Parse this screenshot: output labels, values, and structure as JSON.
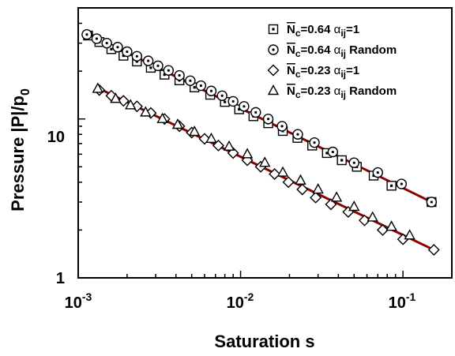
{
  "chart_data": {
    "type": "scatter",
    "xlabel": "Saturation s",
    "ylabel": "Pressure |P|/p",
    "ylabel_sub": "0",
    "xscale": "log",
    "yscale": "log",
    "xlim": [
      0.001,
      0.2
    ],
    "ylim": [
      1,
      50
    ],
    "x_major_ticks": [
      0.001,
      0.01,
      0.1
    ],
    "x_tick_labels": [
      {
        "base": "10",
        "exp": "-3"
      },
      {
        "base": "10",
        "exp": "-2"
      },
      {
        "base": "10",
        "exp": "-1"
      }
    ],
    "y_major_ticks": [
      1,
      10
    ],
    "y_tick_labels": [
      "1",
      "10"
    ],
    "grid": false,
    "legend_position": "top-right",
    "series": [
      {
        "name": "N̄c=0.64 αij=1",
        "legend": {
          "n": "N",
          "nsub": "c",
          "val": "=0.64 ",
          "alpha": "α",
          "asub": "ij",
          "tail": "=1"
        },
        "marker": "square-dot",
        "x": [
          0.00115,
          0.00135,
          0.0016,
          0.0019,
          0.0023,
          0.0028,
          0.0034,
          0.0042,
          0.0052,
          0.0065,
          0.008,
          0.0098,
          0.012,
          0.0148,
          0.0182,
          0.0224,
          0.0276,
          0.034,
          0.042,
          0.052,
          0.066,
          0.085,
          0.15
        ],
        "y": [
          33.5,
          30.5,
          27.5,
          25,
          23,
          21,
          19,
          17.5,
          15.8,
          14.2,
          12.8,
          11.5,
          10.4,
          9.4,
          8.4,
          7.6,
          6.8,
          6.1,
          5.5,
          5.0,
          4.4,
          3.8,
          3.0
        ]
      },
      {
        "name": "N̄c=0.64 αij Random",
        "legend": {
          "n": "N",
          "nsub": "c",
          "val": "=0.64 ",
          "alpha": "α",
          "asub": "ij",
          "tail": " Random"
        },
        "marker": "circle-dot",
        "x": [
          0.00113,
          0.0013,
          0.0015,
          0.00175,
          0.002,
          0.0023,
          0.0027,
          0.0031,
          0.0036,
          0.0042,
          0.0049,
          0.0057,
          0.0066,
          0.0077,
          0.009,
          0.0105,
          0.0124,
          0.0148,
          0.018,
          0.0225,
          0.0285,
          0.037,
          0.05,
          0.07,
          0.098,
          0.15
        ],
        "y": [
          34,
          32,
          30,
          28.3,
          26.5,
          24.8,
          23.2,
          21.6,
          20.2,
          18.8,
          17.4,
          16.2,
          15,
          14,
          12.9,
          12,
          11,
          10,
          9.0,
          8.0,
          7.1,
          6.2,
          5.3,
          4.6,
          3.9,
          3.0
        ]
      },
      {
        "name": "N̄c=0.23 αij=1",
        "legend": {
          "n": "N",
          "nsub": "c",
          "val": "=0.23 ",
          "alpha": "α",
          "asub": "ij",
          "tail": "=1"
        },
        "marker": "diamond",
        "x": [
          0.00135,
          0.0016,
          0.0019,
          0.0023,
          0.0028,
          0.0034,
          0.0042,
          0.005,
          0.006,
          0.0073,
          0.009,
          0.011,
          0.0133,
          0.0162,
          0.0197,
          0.024,
          0.029,
          0.036,
          0.046,
          0.058,
          0.075,
          0.1,
          0.155
        ],
        "y": [
          15.2,
          14.0,
          13.0,
          12.0,
          10.9,
          10.0,
          9.0,
          8.2,
          7.5,
          6.8,
          6.1,
          5.5,
          5.0,
          4.5,
          4.0,
          3.6,
          3.2,
          2.9,
          2.6,
          2.3,
          2.0,
          1.75,
          1.5
        ]
      },
      {
        "name": "N̄c=0.23 αij Random",
        "legend": {
          "n": "N",
          "nsub": "c",
          "val": "=0.23 ",
          "alpha": "α",
          "asub": "ij",
          "tail": " Random"
        },
        "marker": "triangle",
        "x": [
          0.00132,
          0.0017,
          0.0021,
          0.0026,
          0.0033,
          0.0041,
          0.0052,
          0.0066,
          0.0085,
          0.011,
          0.0141,
          0.0182,
          0.0234,
          0.03,
          0.039,
          0.05,
          0.065,
          0.085,
          0.11
        ],
        "y": [
          15.5,
          13.4,
          12.2,
          11.0,
          10.0,
          9.2,
          8.3,
          7.5,
          6.7,
          6.0,
          5.3,
          4.6,
          4.1,
          3.6,
          3.2,
          2.8,
          2.4,
          2.1,
          1.85
        ]
      }
    ],
    "fit_lines": [
      {
        "x": [
          0.00115,
          0.15
        ],
        "y": [
          34.5,
          3.0
        ],
        "color": "#8b0000"
      },
      {
        "x": [
          0.00135,
          0.155
        ],
        "y": [
          15.5,
          1.5
        ],
        "color": "#8b0000"
      }
    ]
  }
}
